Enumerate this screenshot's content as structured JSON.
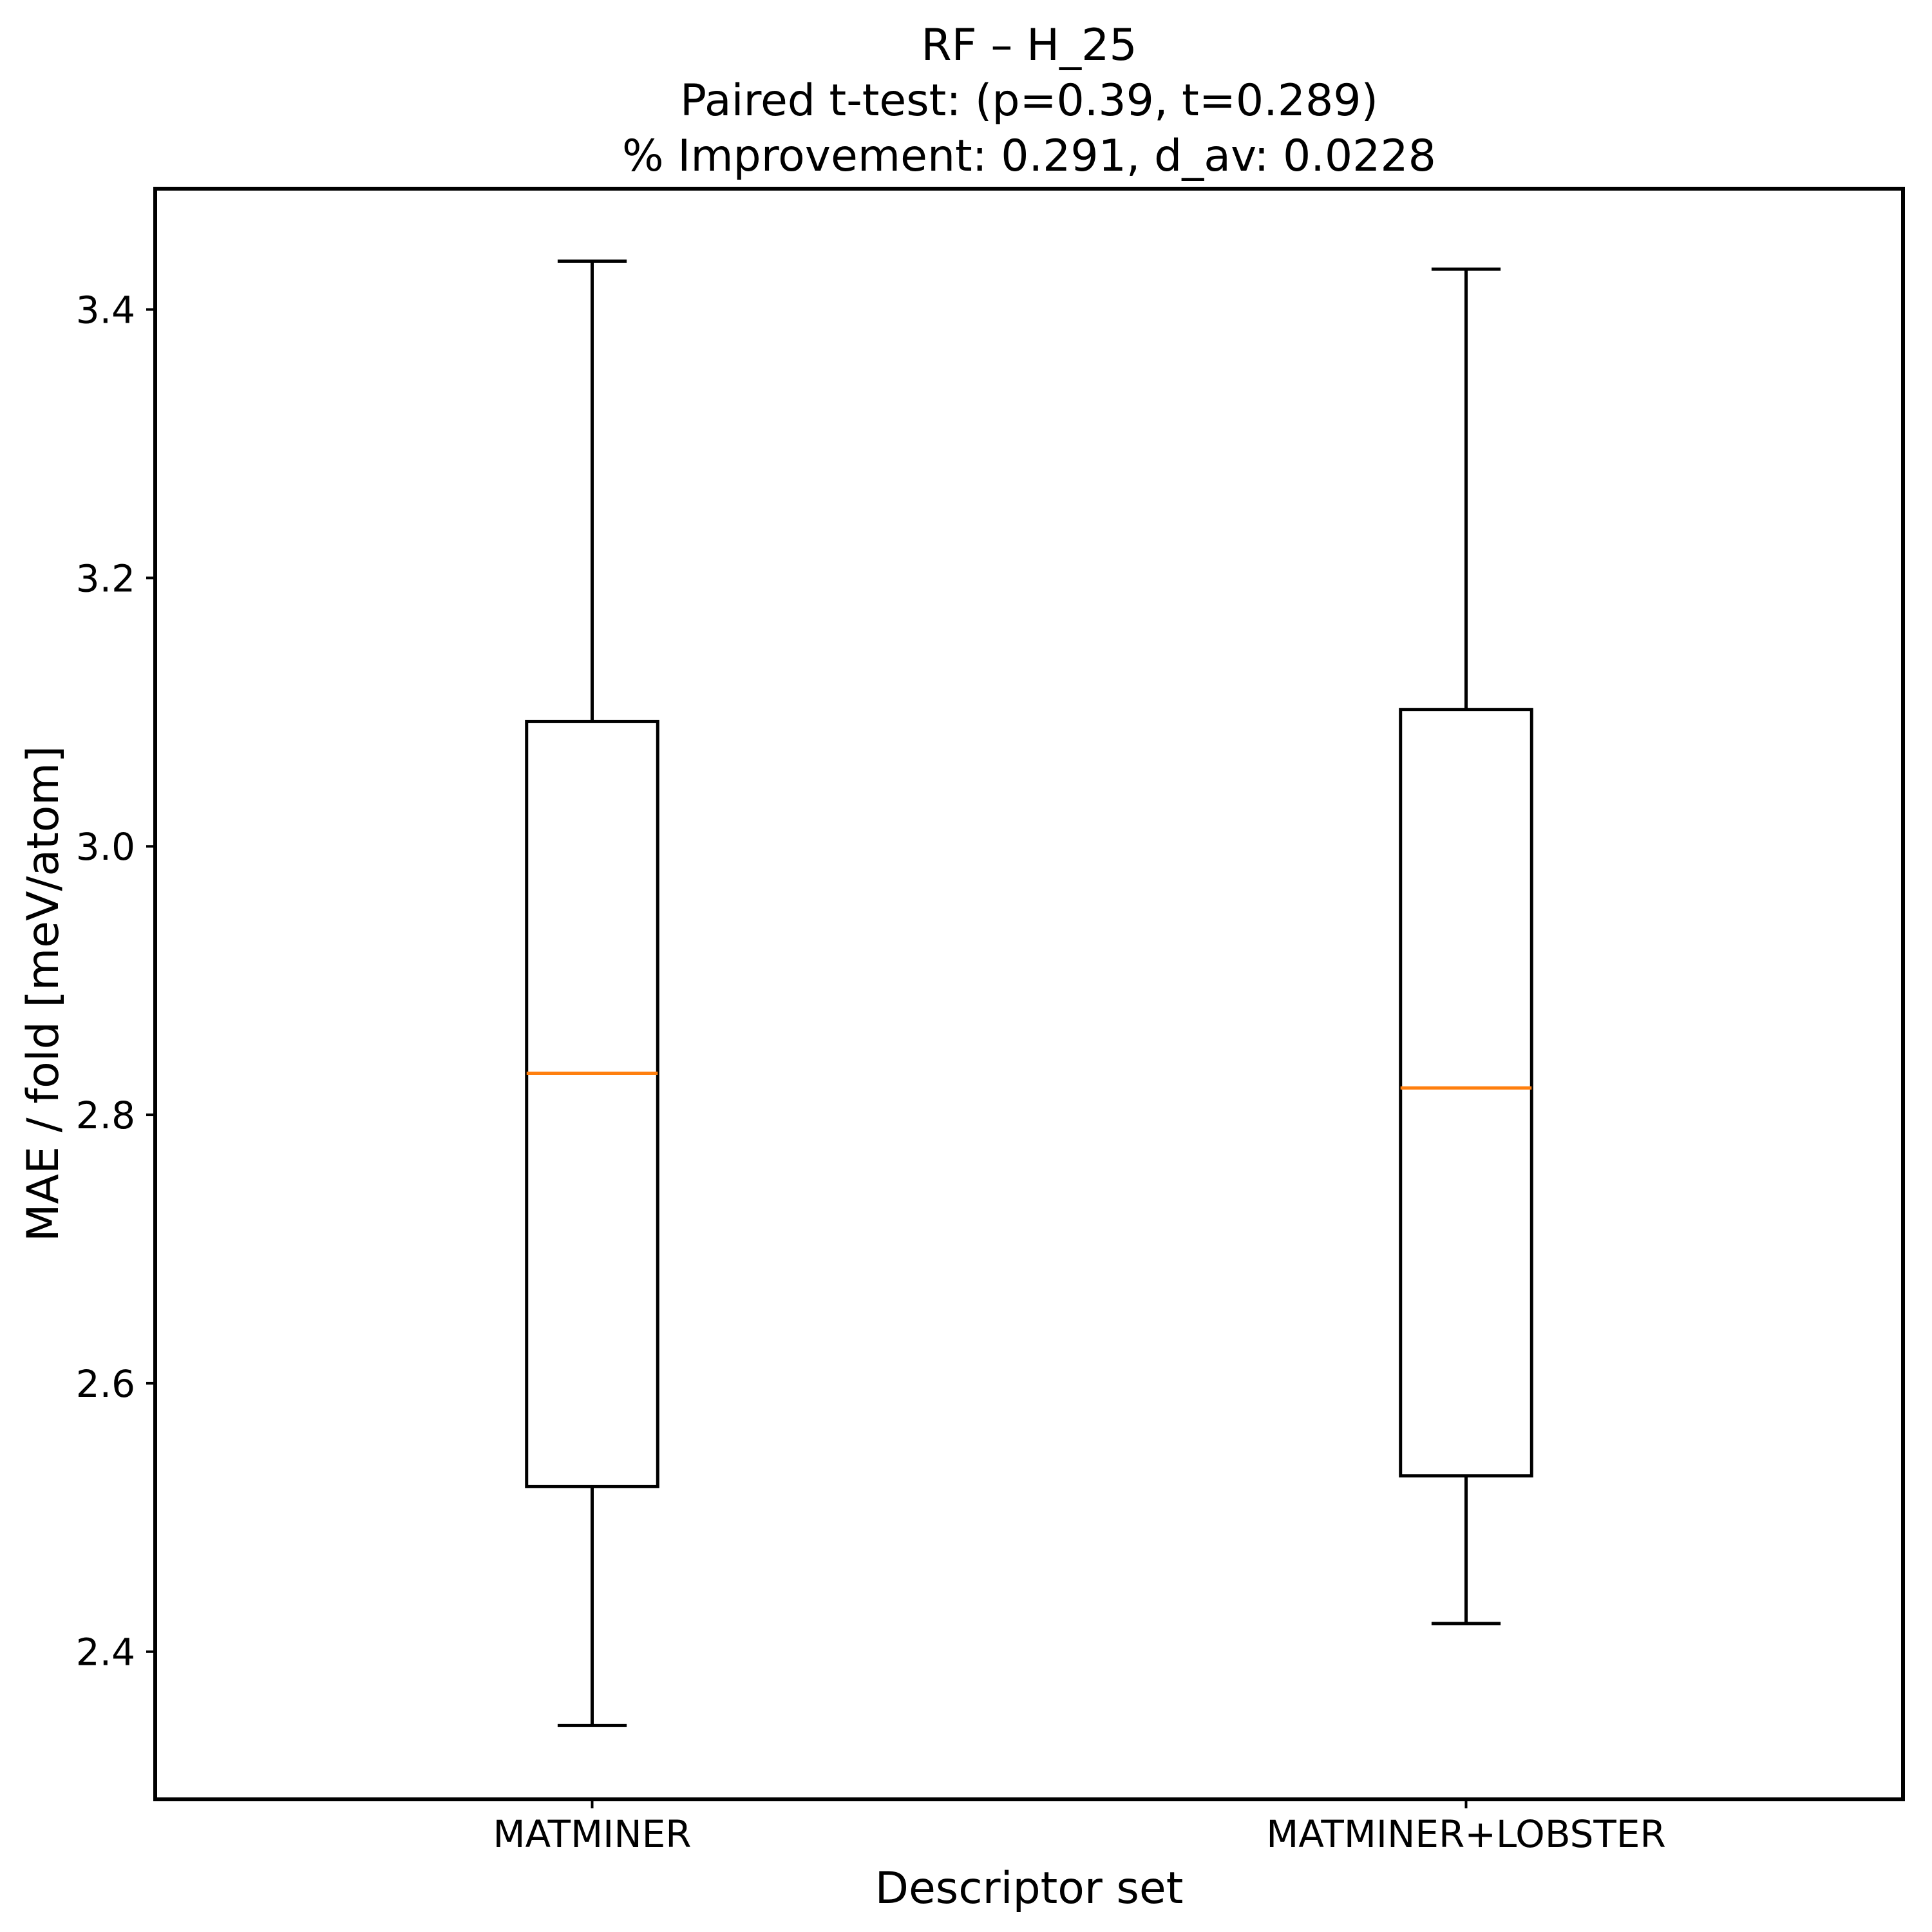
{
  "chart_data": {
    "type": "boxplot",
    "title_lines": [
      "RF – H_25",
      "Paired t-test: (p=0.39, t=0.289)",
      "% Improvement: 0.291, d_av: 0.0228"
    ],
    "xlabel": "Descriptor set",
    "ylabel": "MAE / fold [meV/atom]",
    "categories": [
      "MATMINER",
      "MATMINER+LOBSTER"
    ],
    "series": [
      {
        "name": "MATMINER",
        "whisker_low": 2.345,
        "q1": 2.523,
        "median": 2.831,
        "q3": 3.093,
        "whisker_high": 3.436
      },
      {
        "name": "MATMINER+LOBSTER",
        "whisker_low": 2.421,
        "q1": 2.531,
        "median": 2.82,
        "q3": 3.102,
        "whisker_high": 3.43
      }
    ],
    "ylim": [
      2.29,
      3.49
    ],
    "xlim": [
      0.5,
      2.5
    ],
    "positions": [
      1,
      2
    ],
    "yticks": [
      2.4,
      2.6,
      2.8,
      3.0,
      3.2,
      3.4
    ],
    "grid": false,
    "legend": false,
    "median_color": "#ff7f0e",
    "box_color": "#000000",
    "background_color": "#ffffff"
  }
}
